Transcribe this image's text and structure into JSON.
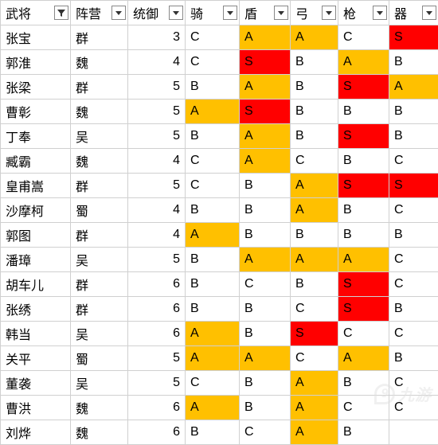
{
  "colors": {
    "S": "#ff0000",
    "A": "#ffc000",
    "default": "#ffffff",
    "border": "#d0d0d0",
    "text": "#000000"
  },
  "fontsize": 16,
  "columns": [
    {
      "key": "name",
      "label": "武将",
      "filter": "funnel"
    },
    {
      "key": "faction",
      "label": "阵营",
      "filter": "arrow"
    },
    {
      "key": "control",
      "label": "统御",
      "filter": "arrow",
      "align": "right"
    },
    {
      "key": "cavalry",
      "label": "骑",
      "filter": "arrow",
      "grade": true
    },
    {
      "key": "shield",
      "label": "盾",
      "filter": "arrow",
      "grade": true
    },
    {
      "key": "bow",
      "label": "弓",
      "filter": "arrow",
      "grade": true
    },
    {
      "key": "spear",
      "label": "枪",
      "filter": "arrow",
      "grade": true
    },
    {
      "key": "siege",
      "label": "器",
      "filter": "arrow",
      "grade": true
    }
  ],
  "rows": [
    {
      "name": "张宝",
      "faction": "群",
      "control": 3,
      "cavalry": "C",
      "shield": "A",
      "bow": "A",
      "spear": "C",
      "siege": "S"
    },
    {
      "name": "郭淮",
      "faction": "魏",
      "control": 4,
      "cavalry": "C",
      "shield": "S",
      "bow": "B",
      "spear": "A",
      "siege": "B"
    },
    {
      "name": "张梁",
      "faction": "群",
      "control": 5,
      "cavalry": "B",
      "shield": "A",
      "bow": "B",
      "spear": "S",
      "siege": "A"
    },
    {
      "name": "曹彰",
      "faction": "魏",
      "control": 5,
      "cavalry": "A",
      "shield": "S",
      "bow": "B",
      "spear": "B",
      "siege": "B"
    },
    {
      "name": "丁奉",
      "faction": "吴",
      "control": 5,
      "cavalry": "B",
      "shield": "A",
      "bow": "B",
      "spear": "S",
      "siege": "B"
    },
    {
      "name": "臧霸",
      "faction": "魏",
      "control": 4,
      "cavalry": "C",
      "shield": "A",
      "bow": "C",
      "spear": "B",
      "siege": "C"
    },
    {
      "name": "皇甫嵩",
      "faction": "群",
      "control": 5,
      "cavalry": "C",
      "shield": "B",
      "bow": "A",
      "spear": "S",
      "siege": "S"
    },
    {
      "name": "沙摩柯",
      "faction": "蜀",
      "control": 4,
      "cavalry": "B",
      "shield": "B",
      "bow": "A",
      "spear": "B",
      "siege": "C"
    },
    {
      "name": "郭图",
      "faction": "群",
      "control": 4,
      "cavalry": "A",
      "shield": "B",
      "bow": "B",
      "spear": "B",
      "siege": "B"
    },
    {
      "name": "潘璋",
      "faction": "吴",
      "control": 5,
      "cavalry": "B",
      "shield": "A",
      "bow": "A",
      "spear": "A",
      "siege": "C"
    },
    {
      "name": "胡车儿",
      "faction": "群",
      "control": 6,
      "cavalry": "B",
      "shield": "C",
      "bow": "B",
      "spear": "S",
      "siege": "C"
    },
    {
      "name": "张绣",
      "faction": "群",
      "control": 6,
      "cavalry": "B",
      "shield": "B",
      "bow": "C",
      "spear": "S",
      "siege": "B"
    },
    {
      "name": "韩当",
      "faction": "吴",
      "control": 6,
      "cavalry": "A",
      "shield": "B",
      "bow": "S",
      "spear": "C",
      "siege": "C"
    },
    {
      "name": "关平",
      "faction": "蜀",
      "control": 5,
      "cavalry": "A",
      "shield": "A",
      "bow": "C",
      "spear": "A",
      "siege": "B"
    },
    {
      "name": "董袭",
      "faction": "吴",
      "control": 5,
      "cavalry": "C",
      "shield": "B",
      "bow": "A",
      "spear": "B",
      "siege": "C"
    },
    {
      "name": "曹洪",
      "faction": "魏",
      "control": 6,
      "cavalry": "A",
      "shield": "B",
      "bow": "A",
      "spear": "C",
      "siege": "C"
    },
    {
      "name": "刘烨",
      "faction": "魏",
      "control": 6,
      "cavalry": "B",
      "shield": "C",
      "bow": "A",
      "spear": "B",
      "siege": ""
    }
  ],
  "watermark": {
    "icon_char": "9",
    "text": "九游"
  }
}
